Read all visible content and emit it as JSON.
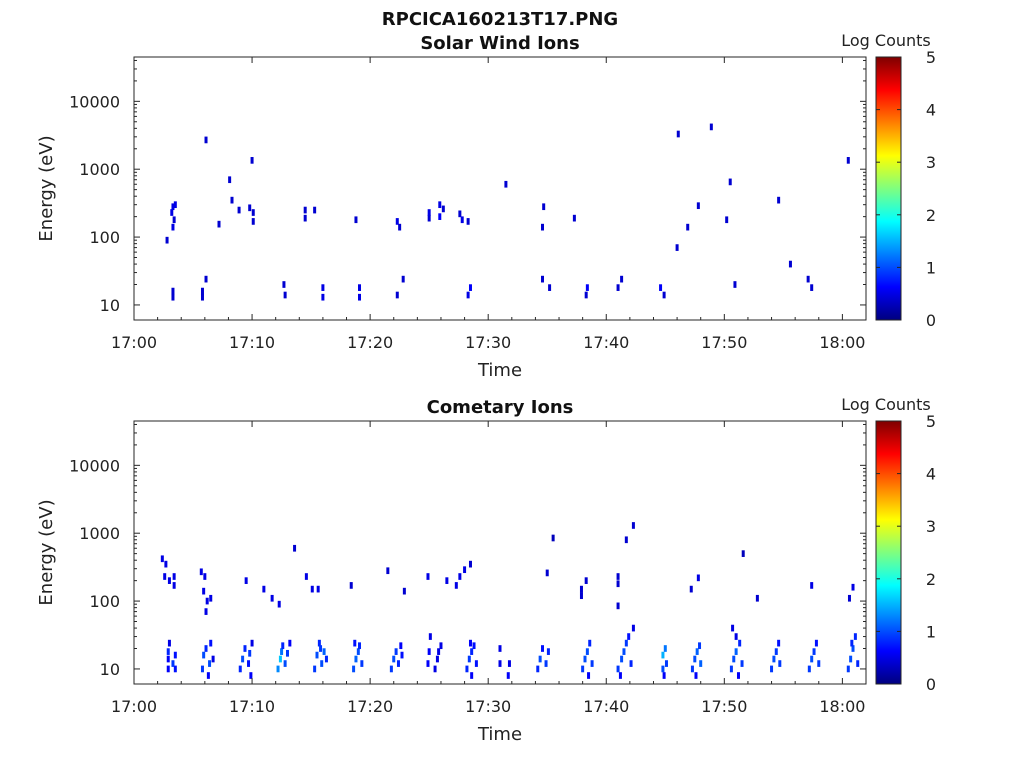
{
  "figure_title": "RPCICA160213T17.PNG",
  "colorbar": {
    "label": "Log Counts",
    "ticks": [
      "0",
      "1",
      "2",
      "3",
      "4",
      "5"
    ],
    "range": [
      0,
      5
    ],
    "colors": [
      "#00007f",
      "#0000ff",
      "#007fff",
      "#00ffff",
      "#7fff7f",
      "#ffff00",
      "#ff7f00",
      "#ff0000",
      "#7f0000"
    ]
  },
  "chart_data": [
    {
      "type": "heatmap",
      "title": "Solar Wind Ions",
      "xlabel": "Time",
      "ylabel": "Energy (eV)",
      "x_unit": "minutes after 17:00",
      "xlim": [
        0,
        62
      ],
      "ylim": [
        6,
        45000
      ],
      "y_scale": "log",
      "x_tick_labels": [
        "17:00",
        "17:10",
        "17:20",
        "17:30",
        "17:40",
        "17:50",
        "18:00"
      ],
      "x_tick_values": [
        0,
        10,
        20,
        30,
        40,
        50,
        60
      ],
      "y_tick_labels": [
        "10",
        "100",
        "1000",
        "10000"
      ],
      "y_tick_values": [
        10,
        100,
        1000,
        10000
      ],
      "cells": [
        [
          3.3,
          13,
          0.4
        ],
        [
          3.3,
          16,
          0.4
        ],
        [
          3.2,
          230,
          0.5
        ],
        [
          3.3,
          280,
          0.5
        ],
        [
          3.5,
          300,
          0.5
        ],
        [
          3.4,
          180,
          0.4
        ],
        [
          3.3,
          140,
          0.5
        ],
        [
          2.8,
          90,
          0.4
        ],
        [
          5.8,
          13,
          0.4
        ],
        [
          5.8,
          16,
          0.4
        ],
        [
          6.1,
          24,
          0.4
        ],
        [
          6.1,
          2700,
          0.4
        ],
        [
          7.2,
          155,
          0.4
        ],
        [
          8.3,
          350,
          0.4
        ],
        [
          8.1,
          700,
          0.4
        ],
        [
          8.9,
          250,
          0.4
        ],
        [
          9.8,
          270,
          0.4
        ],
        [
          10.1,
          230,
          0.4
        ],
        [
          10.1,
          170,
          0.4
        ],
        [
          10.0,
          1350,
          0.4
        ],
        [
          12.7,
          20,
          0.4
        ],
        [
          12.8,
          14,
          0.4
        ],
        [
          14.5,
          250,
          0.4
        ],
        [
          14.5,
          190,
          0.4
        ],
        [
          15.3,
          250,
          0.4
        ],
        [
          16.0,
          13,
          0.5
        ],
        [
          16.0,
          18,
          0.5
        ],
        [
          18.8,
          180,
          0.4
        ],
        [
          19.1,
          13,
          0.5
        ],
        [
          19.1,
          18,
          0.5
        ],
        [
          22.3,
          170,
          0.5
        ],
        [
          22.5,
          140,
          0.4
        ],
        [
          22.3,
          14,
          0.4
        ],
        [
          22.8,
          24,
          0.4
        ],
        [
          25.0,
          190,
          0.4
        ],
        [
          25.0,
          230,
          0.5
        ],
        [
          25.9,
          300,
          0.5
        ],
        [
          25.9,
          200,
          0.6
        ],
        [
          26.2,
          260,
          0.4
        ],
        [
          27.6,
          220,
          0.4
        ],
        [
          27.8,
          180,
          0.5
        ],
        [
          28.3,
          170,
          0.4
        ],
        [
          28.3,
          14,
          0.5
        ],
        [
          28.5,
          18,
          0.6
        ],
        [
          31.5,
          600,
          0.4
        ],
        [
          34.6,
          24,
          0.4
        ],
        [
          34.6,
          140,
          0.4
        ],
        [
          34.7,
          280,
          0.4
        ],
        [
          35.2,
          18,
          0.4
        ],
        [
          37.3,
          190,
          0.4
        ],
        [
          38.3,
          14,
          0.4
        ],
        [
          38.4,
          18,
          0.6
        ],
        [
          41.0,
          18,
          0.4
        ],
        [
          41.3,
          24,
          0.4
        ],
        [
          44.6,
          18,
          0.6
        ],
        [
          44.9,
          14,
          0.4
        ],
        [
          46.1,
          3300,
          0.4
        ],
        [
          46.0,
          70,
          0.4
        ],
        [
          46.9,
          140,
          0.4
        ],
        [
          47.8,
          290,
          0.4
        ],
        [
          48.9,
          4200,
          0.4
        ],
        [
          50.2,
          180,
          0.4
        ],
        [
          50.5,
          650,
          0.4
        ],
        [
          50.9,
          20,
          0.4
        ],
        [
          54.6,
          350,
          0.4
        ],
        [
          55.6,
          40,
          0.4
        ],
        [
          57.1,
          24,
          0.4
        ],
        [
          57.4,
          18,
          0.4
        ],
        [
          60.5,
          1350,
          0.4
        ]
      ]
    },
    {
      "type": "heatmap",
      "title": "Cometary Ions",
      "xlabel": "Time",
      "ylabel": "Energy (eV)",
      "x_unit": "minutes after 17:00",
      "xlim": [
        0,
        62
      ],
      "ylim": [
        6,
        45000
      ],
      "y_scale": "log",
      "x_tick_labels": [
        "17:00",
        "17:10",
        "17:20",
        "17:30",
        "17:40",
        "17:50",
        "18:00"
      ],
      "x_tick_values": [
        0,
        10,
        20,
        30,
        40,
        50,
        60
      ],
      "y_tick_labels": [
        "10",
        "100",
        "1000",
        "10000"
      ],
      "y_tick_values": [
        10,
        100,
        1000,
        10000
      ],
      "cells": [
        [
          2.4,
          420,
          0.5
        ],
        [
          2.7,
          350,
          0.5
        ],
        [
          2.6,
          230,
          0.5
        ],
        [
          3.0,
          200,
          0.5
        ],
        [
          3.4,
          230,
          0.5
        ],
        [
          3.4,
          170,
          0.5
        ],
        [
          2.9,
          10,
          0.6
        ],
        [
          2.9,
          14,
          0.6
        ],
        [
          2.9,
          18,
          0.8
        ],
        [
          3.0,
          24,
          0.5
        ],
        [
          3.3,
          12,
          0.9
        ],
        [
          3.5,
          16,
          0.7
        ],
        [
          3.5,
          10,
          0.7
        ],
        [
          5.7,
          270,
          0.5
        ],
        [
          6.0,
          230,
          0.5
        ],
        [
          5.9,
          140,
          0.5
        ],
        [
          6.2,
          100,
          0.5
        ],
        [
          6.1,
          70,
          0.5
        ],
        [
          6.5,
          110,
          0.5
        ],
        [
          5.8,
          10,
          0.9
        ],
        [
          5.9,
          16,
          1.0
        ],
        [
          6.1,
          20,
          0.8
        ],
        [
          6.3,
          8,
          0.6
        ],
        [
          6.4,
          12,
          1.0
        ],
        [
          6.5,
          24,
          0.7
        ],
        [
          6.7,
          14,
          0.5
        ],
        [
          9.5,
          200,
          0.5
        ],
        [
          9.0,
          10,
          0.8
        ],
        [
          9.2,
          14,
          1.0
        ],
        [
          9.4,
          20,
          0.8
        ],
        [
          9.7,
          12,
          0.7
        ],
        [
          9.8,
          17,
          0.9
        ],
        [
          10.0,
          24,
          0.5
        ],
        [
          9.9,
          8,
          0.6
        ],
        [
          11.0,
          150,
          0.5
        ],
        [
          11.7,
          110,
          0.5
        ],
        [
          12.3,
          90,
          0.5
        ],
        [
          12.2,
          10,
          1.3
        ],
        [
          12.4,
          14,
          1.6
        ],
        [
          12.5,
          18,
          1.2
        ],
        [
          12.8,
          12,
          1.0
        ],
        [
          13.0,
          17,
          0.9
        ],
        [
          13.2,
          24,
          0.6
        ],
        [
          12.6,
          22,
          0.8
        ],
        [
          13.6,
          600,
          0.4
        ],
        [
          14.6,
          230,
          0.5
        ],
        [
          15.1,
          150,
          0.5
        ],
        [
          15.6,
          150,
          0.5
        ],
        [
          15.3,
          10,
          0.9
        ],
        [
          15.5,
          16,
          1.0
        ],
        [
          15.7,
          24,
          0.8
        ],
        [
          15.9,
          12,
          1.0
        ],
        [
          16.1,
          18,
          1.1
        ],
        [
          16.3,
          14,
          0.8
        ],
        [
          15.8,
          20,
          0.9
        ],
        [
          18.4,
          170,
          0.4
        ],
        [
          18.6,
          10,
          1.0
        ],
        [
          18.8,
          14,
          1.1
        ],
        [
          19.0,
          18,
          1.0
        ],
        [
          19.1,
          22,
          0.8
        ],
        [
          19.3,
          12,
          0.9
        ],
        [
          18.7,
          24,
          0.7
        ],
        [
          21.5,
          280,
          0.4
        ],
        [
          22.9,
          140,
          0.4
        ],
        [
          21.8,
          10,
          0.9
        ],
        [
          22.0,
          14,
          1.0
        ],
        [
          22.2,
          18,
          0.9
        ],
        [
          22.4,
          12,
          0.8
        ],
        [
          22.6,
          22,
          0.6
        ],
        [
          22.7,
          16,
          0.7
        ],
        [
          24.9,
          230,
          0.5
        ],
        [
          24.9,
          12,
          0.6
        ],
        [
          25.0,
          18,
          0.6
        ],
        [
          25.1,
          30,
          0.5
        ],
        [
          25.5,
          10,
          0.5
        ],
        [
          25.7,
          14,
          0.5
        ],
        [
          25.8,
          18,
          0.5
        ],
        [
          26.0,
          22,
          0.5
        ],
        [
          26.5,
          200,
          0.5
        ],
        [
          27.3,
          170,
          0.5
        ],
        [
          27.6,
          230,
          0.5
        ],
        [
          28.0,
          290,
          0.5
        ],
        [
          28.5,
          350,
          0.4
        ],
        [
          28.2,
          10,
          0.8
        ],
        [
          28.4,
          14,
          0.9
        ],
        [
          28.6,
          18,
          0.8
        ],
        [
          28.8,
          22,
          0.7
        ],
        [
          29.0,
          12,
          0.7
        ],
        [
          28.5,
          24,
          0.6
        ],
        [
          28.6,
          8,
          0.6
        ],
        [
          31.0,
          12,
          0.5
        ],
        [
          31.0,
          20,
          0.5
        ],
        [
          31.7,
          8,
          0.6
        ],
        [
          31.8,
          12,
          0.5
        ],
        [
          34.2,
          10,
          0.8
        ],
        [
          34.4,
          14,
          1.0
        ],
        [
          34.6,
          20,
          0.7
        ],
        [
          34.9,
          12,
          0.9
        ],
        [
          35.1,
          18,
          0.8
        ],
        [
          35.0,
          260,
          0.4
        ],
        [
          35.5,
          850,
          0.3
        ],
        [
          37.9,
          150,
          0.4
        ],
        [
          37.9,
          120,
          0.4
        ],
        [
          38.3,
          200,
          0.4
        ],
        [
          38.0,
          10,
          0.9
        ],
        [
          38.2,
          14,
          1.0
        ],
        [
          38.4,
          18,
          1.0
        ],
        [
          38.6,
          24,
          0.8
        ],
        [
          38.8,
          12,
          0.9
        ],
        [
          38.5,
          8,
          0.6
        ],
        [
          41.0,
          180,
          0.4
        ],
        [
          41.0,
          230,
          0.4
        ],
        [
          41.0,
          85,
          0.4
        ],
        [
          41.7,
          800,
          0.4
        ],
        [
          42.3,
          1300,
          0.4
        ],
        [
          42.3,
          40,
          0.5
        ],
        [
          41.0,
          10,
          0.9
        ],
        [
          41.3,
          14,
          1.0
        ],
        [
          41.5,
          18,
          1.0
        ],
        [
          41.7,
          24,
          0.9
        ],
        [
          41.9,
          30,
          0.7
        ],
        [
          41.2,
          8,
          0.6
        ],
        [
          42.1,
          12,
          0.8
        ],
        [
          44.8,
          10,
          1.0
        ],
        [
          44.8,
          16,
          1.5
        ],
        [
          45.0,
          20,
          1.2
        ],
        [
          45.1,
          12,
          0.9
        ],
        [
          44.9,
          8,
          0.6
        ],
        [
          47.8,
          220,
          0.5
        ],
        [
          47.2,
          150,
          0.4
        ],
        [
          47.3,
          10,
          0.9
        ],
        [
          47.5,
          14,
          1.0
        ],
        [
          47.7,
          18,
          1.1
        ],
        [
          47.9,
          22,
          0.9
        ],
        [
          48.0,
          12,
          1.1
        ],
        [
          47.6,
          8,
          0.6
        ],
        [
          50.7,
          40,
          0.5
        ],
        [
          51.0,
          30,
          0.5
        ],
        [
          51.6,
          500,
          0.3
        ],
        [
          52.8,
          110,
          0.4
        ],
        [
          50.6,
          10,
          0.9
        ],
        [
          50.8,
          14,
          1.0
        ],
        [
          51.0,
          18,
          1.1
        ],
        [
          51.3,
          24,
          0.8
        ],
        [
          51.5,
          12,
          0.9
        ],
        [
          51.2,
          8,
          0.6
        ],
        [
          54.0,
          10,
          0.9
        ],
        [
          54.2,
          14,
          1.0
        ],
        [
          54.4,
          18,
          0.9
        ],
        [
          54.6,
          24,
          0.7
        ],
        [
          54.7,
          12,
          0.9
        ],
        [
          57.4,
          170,
          0.5
        ],
        [
          57.2,
          10,
          0.9
        ],
        [
          57.4,
          14,
          1.0
        ],
        [
          57.6,
          18,
          0.9
        ],
        [
          57.8,
          24,
          0.7
        ],
        [
          58.0,
          12,
          0.9
        ],
        [
          60.6,
          110,
          0.4
        ],
        [
          60.9,
          160,
          0.5
        ],
        [
          60.5,
          10,
          0.9
        ],
        [
          60.7,
          14,
          1.0
        ],
        [
          60.9,
          20,
          1.0
        ],
        [
          61.1,
          30,
          0.8
        ],
        [
          61.3,
          12,
          0.8
        ],
        [
          60.8,
          24,
          0.8
        ]
      ]
    }
  ]
}
